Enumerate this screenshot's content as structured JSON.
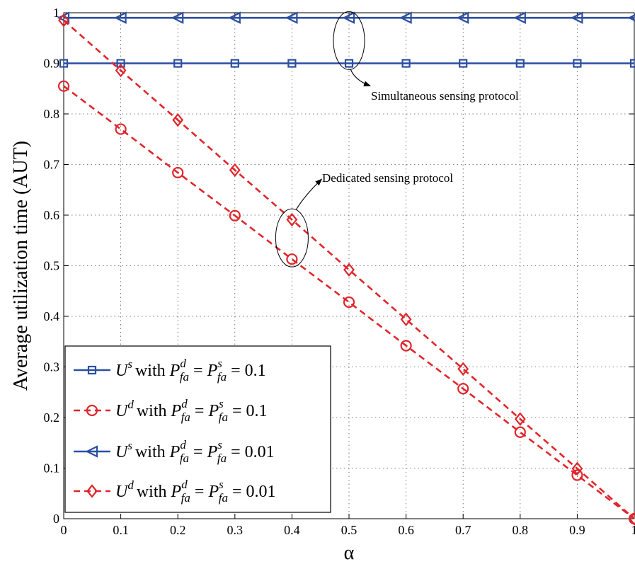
{
  "chart_data": {
    "type": "line",
    "title": "",
    "xlabel": "α",
    "ylabel": "Average utilization time (AUT)",
    "xlim": [
      0,
      1
    ],
    "ylim": [
      0,
      1
    ],
    "x_ticks": [
      "0",
      "0.1",
      "0.2",
      "0.3",
      "0.4",
      "0.5",
      "0.6",
      "0.7",
      "0.8",
      "0.9",
      "1"
    ],
    "y_ticks": [
      "0",
      "0.1",
      "0.2",
      "0.3",
      "0.4",
      "0.5",
      "0.6",
      "0.7",
      "0.8",
      "0.9",
      "1"
    ],
    "grid": true,
    "legend_position": "bottom-left",
    "x": [
      0,
      0.1,
      0.2,
      0.3,
      0.4,
      0.5,
      0.6,
      0.7,
      0.8,
      0.9,
      1.0
    ],
    "series": [
      {
        "symbol": "U",
        "sup": "s",
        "with": "with",
        "p_sym": "P",
        "p_sup1": "d",
        "p_sub": "fa",
        "p_sup2": "s",
        "eq": "=",
        "value_label": "= 0.1",
        "color": "#2b4ea2",
        "marker": "square",
        "dash": false,
        "values": [
          0.9,
          0.9,
          0.9,
          0.9,
          0.9,
          0.9,
          0.9,
          0.9,
          0.9,
          0.9,
          0.9
        ]
      },
      {
        "symbol": "U",
        "sup": "d",
        "with": "with",
        "p_sym": "P",
        "p_sup1": "d",
        "p_sub": "fa",
        "p_sup2": "s",
        "eq": "=",
        "value_label": "= 0.1",
        "color": "#e0262c",
        "marker": "circle",
        "dash": true,
        "values": [
          0.855,
          0.77,
          0.684,
          0.599,
          0.513,
          0.428,
          0.342,
          0.257,
          0.171,
          0.086,
          0.0
        ]
      },
      {
        "symbol": "U",
        "sup": "s",
        "with": "with",
        "p_sym": "P",
        "p_sup1": "d",
        "p_sub": "fa",
        "p_sup2": "s",
        "eq": "=",
        "value_label": "= 0.01",
        "color": "#2b4ea2",
        "marker": "triangle-left",
        "dash": false,
        "values": [
          0.99,
          0.99,
          0.99,
          0.99,
          0.99,
          0.99,
          0.99,
          0.99,
          0.99,
          0.99,
          0.99
        ]
      },
      {
        "symbol": "U",
        "sup": "d",
        "with": "with",
        "p_sym": "P",
        "p_sup1": "d",
        "p_sub": "fa",
        "p_sup2": "s",
        "eq": "=",
        "value_label": "= 0.01",
        "color": "#e0262c",
        "marker": "diamond",
        "dash": true,
        "values": [
          0.985,
          0.886,
          0.788,
          0.689,
          0.591,
          0.492,
          0.394,
          0.296,
          0.197,
          0.099,
          0.0
        ]
      }
    ],
    "annotations": [
      {
        "text": "Simultaneous sensing protocol",
        "ellipse_center": [
          0.5,
          0.945
        ],
        "target": "simultaneous"
      },
      {
        "text": "Dedicated sensing protocol",
        "ellipse_center": [
          0.4,
          0.555
        ],
        "target": "dedicated"
      }
    ]
  }
}
